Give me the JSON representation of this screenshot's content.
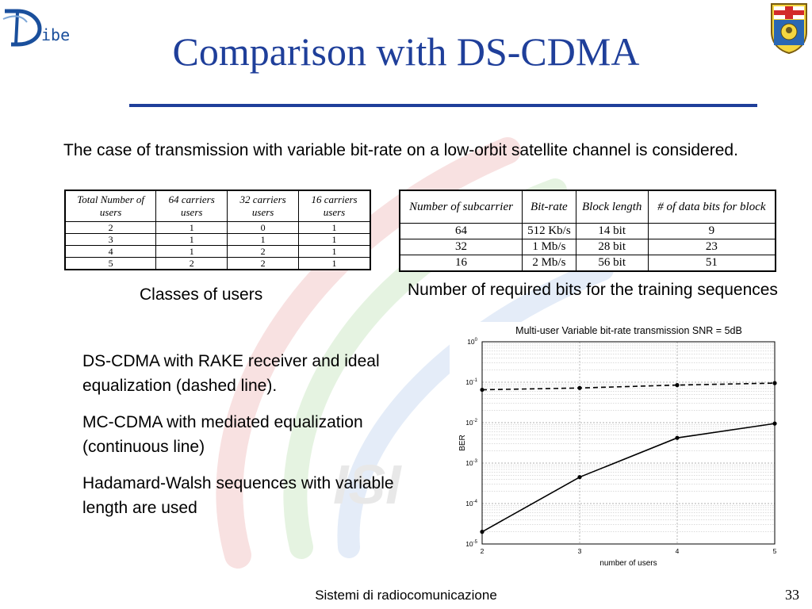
{
  "header": {
    "logo_text": "ibe",
    "title": "Comparison with DS-CDMA"
  },
  "intro": "The case of transmission with variable bit-rate on a low-orbit satellite channel is considered.",
  "users_table": {
    "headers": [
      "Total Number of users",
      "64 carriers users",
      "32 carriers users",
      "16 carriers users"
    ],
    "rows": [
      [
        "2",
        "1",
        "0",
        "1"
      ],
      [
        "3",
        "1",
        "1",
        "1"
      ],
      [
        "4",
        "1",
        "2",
        "1"
      ],
      [
        "5",
        "2",
        "2",
        "1"
      ]
    ]
  },
  "users_caption": "Classes of users",
  "bits_table": {
    "headers": [
      "Number of subcarrier",
      "Bit-rate",
      "Block length",
      "# of data bits for block"
    ],
    "rows": [
      [
        "64",
        "512 Kb/s",
        "14 bit",
        "9"
      ],
      [
        "32",
        "1 Mb/s",
        "28 bit",
        "23"
      ],
      [
        "16",
        "2 Mb/s",
        "56 bit",
        "51"
      ]
    ]
  },
  "bits_caption": "Number of required bits for the training sequences",
  "notes": [
    "DS-CDMA with RAKE receiver and ideal equalization (dashed line).",
    "MC-CDMA with mediated equalization (continuous line)",
    "Hadamard-Walsh sequences with variable length are used"
  ],
  "chart_data": {
    "type": "line",
    "title": "Multi-user Variable bit-rate transmission SNR = 5dB",
    "xlabel": "number of users",
    "ylabel": "BER",
    "x": [
      2,
      3,
      4,
      5
    ],
    "xlim": [
      2,
      5
    ],
    "ylim": [
      1e-05,
      1
    ],
    "yscale": "log",
    "grid": true,
    "x_ticks": [
      "2",
      "3",
      "4",
      "5"
    ],
    "y_ticks": [
      "10^0",
      "10^-1",
      "10^-2",
      "10^-3",
      "10^-4",
      "10^-5"
    ],
    "series": [
      {
        "style": "dashed",
        "values": [
          0.065,
          0.072,
          0.085,
          0.095
        ]
      },
      {
        "style": "solid",
        "values": [
          2e-05,
          0.00045,
          0.0042,
          0.0095
        ]
      }
    ]
  },
  "footer": {
    "text": "Sistemi di radiocomunicazione",
    "page": "33"
  }
}
